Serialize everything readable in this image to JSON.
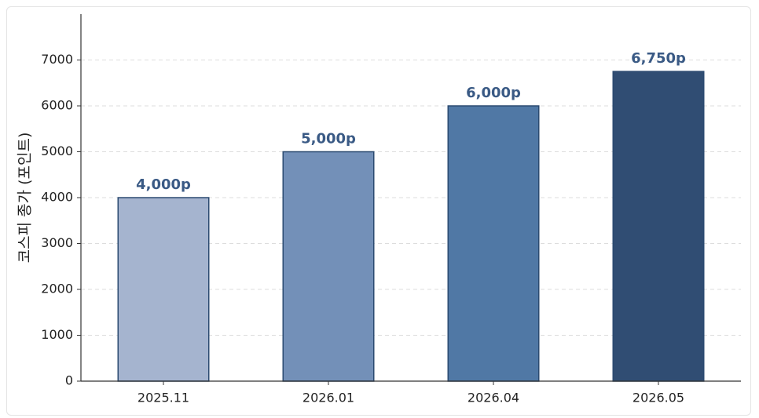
{
  "chart_data": {
    "type": "bar",
    "y_label": "코스피 종가 (포인트)",
    "categories": [
      "2025.11",
      "2026.01",
      "2026.04",
      "2026.05"
    ],
    "values": [
      4000,
      5000,
      6000,
      6750
    ],
    "value_labels": [
      "4,000p",
      "5,000p",
      "6,000p",
      "6,750p"
    ],
    "colors": [
      "#a5b4cf",
      "#7390b8",
      "#5078a5",
      "#304d73"
    ],
    "edge_color": "#2b4a70",
    "label_color": "#3a5a85",
    "ylim": [
      0,
      8000
    ],
    "yticks": [
      0,
      1000,
      2000,
      3000,
      4000,
      5000,
      6000,
      7000
    ],
    "grid": true
  }
}
